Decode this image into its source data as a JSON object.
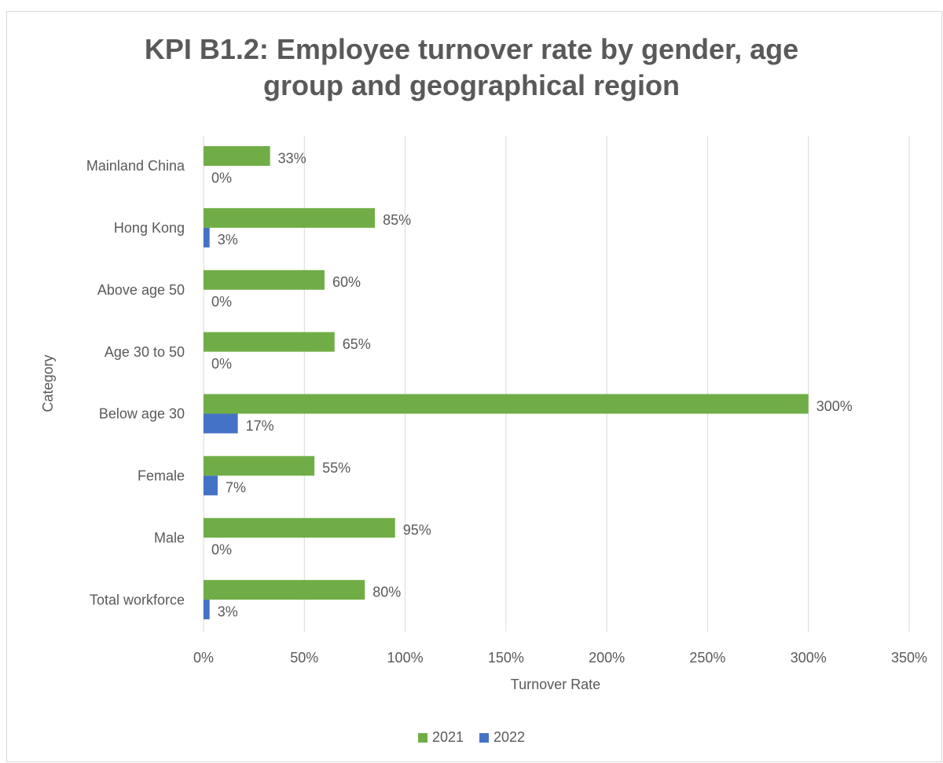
{
  "chart_data": {
    "type": "bar",
    "orientation": "horizontal",
    "title": "KPI B1.2: Employee turnover rate by gender, age group and geographical region",
    "x_label": "Turnover Rate",
    "y_label": "Category",
    "categories": [
      "Total workforce",
      "Male",
      "Female",
      "Below age 30",
      "Age 30 to 50",
      "Above age 50",
      "Hong Kong",
      "Mainland China"
    ],
    "series": [
      {
        "name": "2021",
        "color": "#70ad47",
        "values": [
          80,
          95,
          55,
          300,
          65,
          60,
          85,
          33
        ],
        "value_labels": [
          "80%",
          "95%",
          "55%",
          "300%",
          "65%",
          "60%",
          "85%",
          "33%"
        ]
      },
      {
        "name": "2022",
        "color": "#4472c4",
        "values": [
          3,
          0,
          7,
          17,
          0,
          0,
          3,
          0
        ],
        "value_labels": [
          "3%",
          "0%",
          "7%",
          "17%",
          "0%",
          "0%",
          "3%",
          "0%"
        ]
      }
    ],
    "xlim": [
      0,
      350
    ],
    "xticks": [
      {
        "value": 0,
        "label": "0%"
      },
      {
        "value": 50,
        "label": "50%"
      },
      {
        "value": 100,
        "label": "100%"
      },
      {
        "value": 150,
        "label": "150%"
      },
      {
        "value": 200,
        "label": "200%"
      },
      {
        "value": 250,
        "label": "250%"
      },
      {
        "value": 300,
        "label": "300%"
      },
      {
        "value": 350,
        "label": "350%"
      }
    ],
    "grid": true,
    "legend": "bottom"
  }
}
